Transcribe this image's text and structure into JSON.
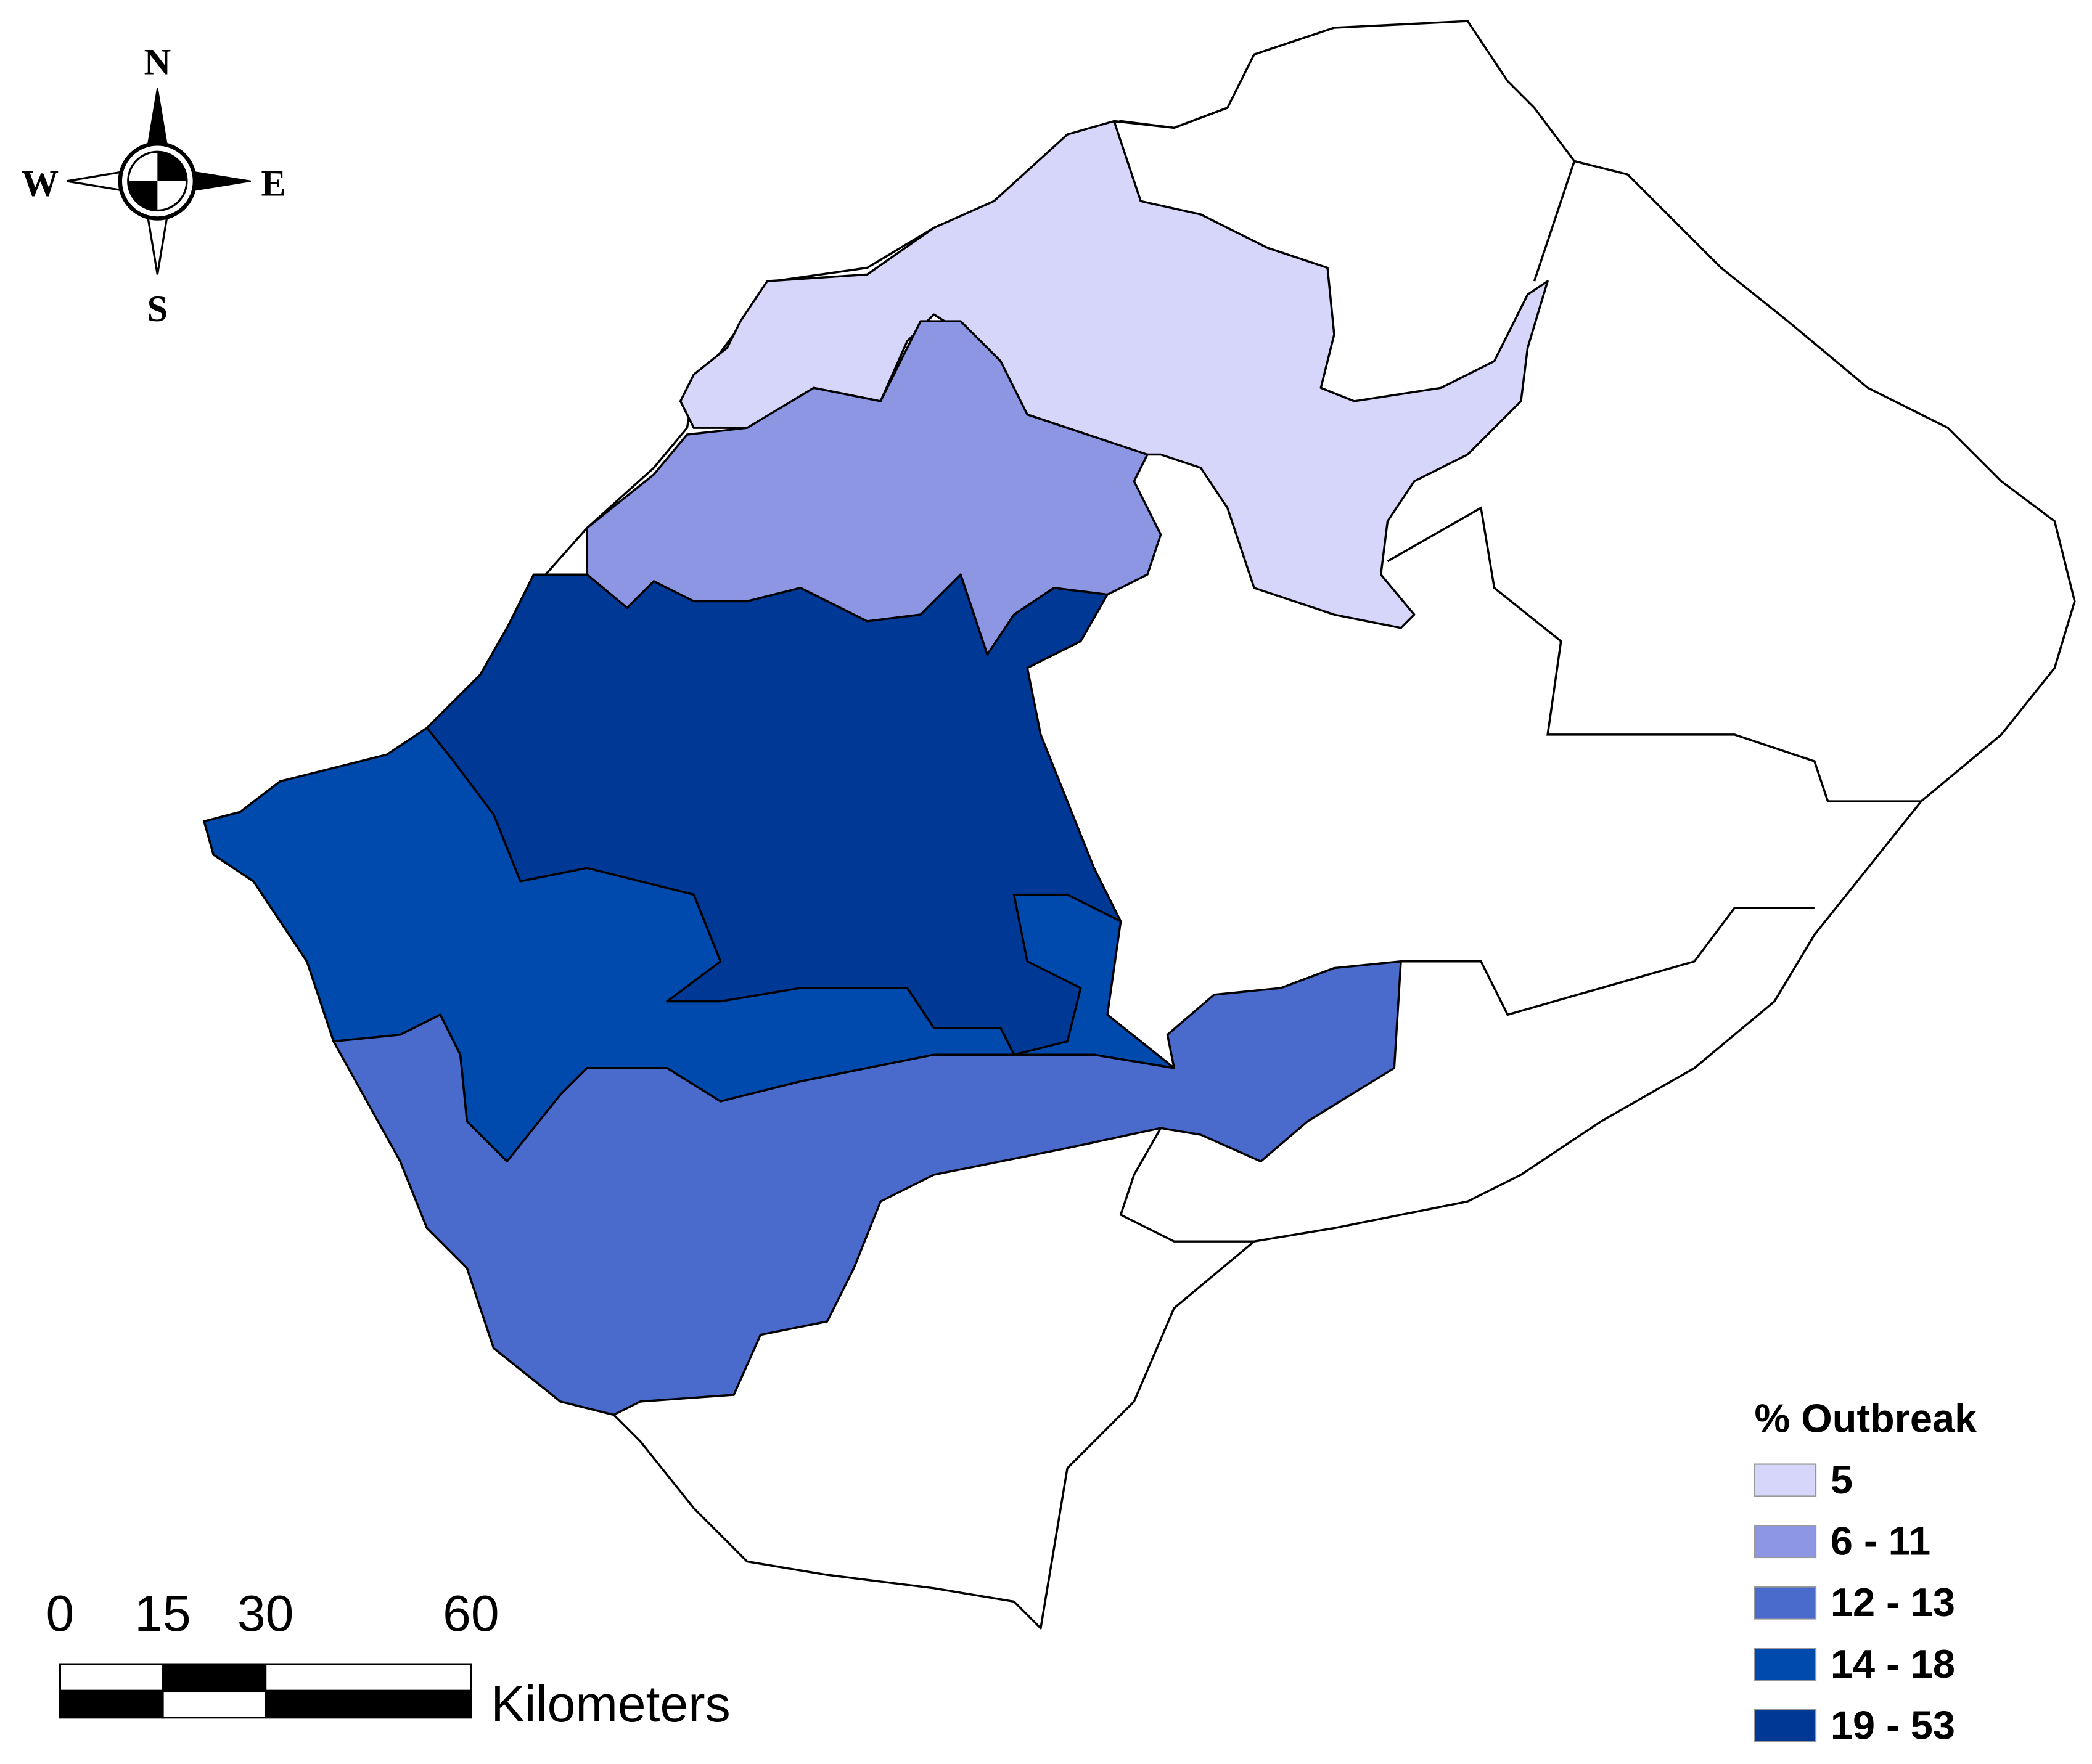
{
  "compass": {
    "north": "N",
    "south": "S",
    "east": "E",
    "west": "W"
  },
  "scale_bar": {
    "ticks": [
      0,
      15,
      30,
      60
    ],
    "unit": "Kilometers"
  },
  "legend": {
    "title": "% Outbreak",
    "items": [
      {
        "label": "5",
        "color": "#d6d6fa"
      },
      {
        "label": "6 - 11",
        "color": "#8c96e3"
      },
      {
        "label": "12 - 13",
        "color": "#4a6bcc"
      },
      {
        "label": "14 - 18",
        "color": "#004aad"
      },
      {
        "label": "19 - 53",
        "color": "#003896"
      }
    ]
  }
}
